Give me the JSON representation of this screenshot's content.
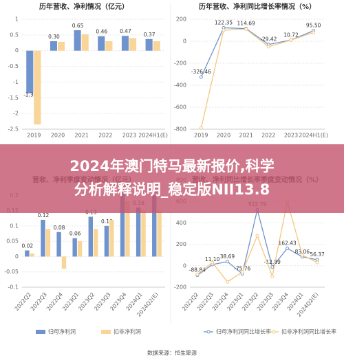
{
  "chart_data": [
    {
      "type": "bar",
      "title": "历年营收、净利情况（亿元）",
      "categories": [
        "2019",
        "2020",
        "2021",
        "2022",
        "2023",
        "2024H1(E)"
      ],
      "series": [
        {
          "color": "#6f93cc",
          "values": [
            -1.36,
            0.3,
            0.65,
            0.46,
            0.47,
            0.37
          ],
          "value_labels": [
            "-1.36",
            "0.30",
            "0.65",
            "0.46",
            "0.47",
            "0.37"
          ]
        },
        {
          "color": "#f9d598",
          "values": [
            -2.35,
            0.28,
            0.52,
            0.3,
            0.4,
            0.3
          ]
        }
      ],
      "ylim": [
        -2.5,
        1
      ],
      "yticks": [
        -2.5,
        -2,
        -1.5,
        -1,
        -0.5,
        0,
        0.5,
        1
      ],
      "grid": true
    },
    {
      "type": "line",
      "title": "历年营收、净利同比增长率情况（%）",
      "categories": [
        "2019",
        "2020",
        "2021",
        "2022",
        "2023",
        "2024H1(E)"
      ],
      "series": [
        {
          "color": "#6f93cc",
          "values": [
            -326.46,
            122.35,
            114.69,
            -29.42,
            10.72,
            95.5
          ],
          "value_labels": [
            "-326.46",
            "122.35",
            "114.69",
            "-29.42",
            "10.72",
            "95.50"
          ]
        },
        {
          "color": "#f5c77e",
          "values": [
            -790,
            100,
            110,
            -50,
            10,
            80
          ]
        }
      ],
      "ylim": [
        -800,
        200
      ],
      "yticks": [
        -800,
        -600,
        -400,
        -200,
        0,
        200
      ],
      "grid": true
    },
    {
      "type": "bar",
      "title": "营收、净利季度变动情况（亿元）",
      "categories": [
        "2022Q2",
        "2022Q3",
        "2022Q4",
        "2023Q1",
        "2023Q2",
        "2023Q3",
        "2023Q4",
        "2024Q1",
        "2024Q2(E)"
      ],
      "series": [
        {
          "name": "归母净利润",
          "color": "#6f93cc",
          "values": [
            0.02,
            0.12,
            0.08,
            0.06,
            0.13,
            0.1,
            0.22,
            0.16,
            0.2
          ],
          "value_labels": [
            "0.02",
            "0.12",
            "0.08",
            "0.06",
            "0.13",
            "0.10",
            "0.22",
            "0.16",
            "0.20"
          ]
        },
        {
          "name": "扣非净利润",
          "color": "#f9d598",
          "values": [
            0.01,
            0.09,
            -0.04,
            0.05,
            0.09,
            0.12,
            0.18,
            0.15,
            0.15
          ]
        }
      ],
      "ylim": [
        -0.1,
        0.25
      ],
      "yticks": [
        -0.1,
        -0.05,
        0,
        0.05,
        0.1,
        0.15,
        0.2
      ],
      "grid": true
    },
    {
      "type": "line",
      "title": "营收、净利同比增长率季度变动情况（%）",
      "categories": [
        "2022Q2",
        "2022Q3",
        "2022Q4",
        "2023Q1",
        "2023Q2",
        "2023Q3",
        "2023Q4",
        "2024Q1",
        "2024Q2(E)"
      ],
      "series": [
        {
          "name": "归母净利润同比增长率",
          "color": "#6f93cc",
          "values": [
            -88.84,
            11.1,
            38.69,
            -75.76,
            522.79,
            -12.89,
            162.43,
            83.06,
            56.37
          ],
          "value_labels": [
            "-88.84",
            "11.10",
            "38.69",
            "-75.76",
            "522.79",
            "-12.89",
            "162.43",
            "83.06",
            "56.37"
          ]
        },
        {
          "name": "扣非净利润同比增长率",
          "color": "#f5c77e",
          "values": [
            -80,
            30,
            -150,
            -60,
            280,
            -100,
            600,
            100,
            30
          ]
        }
      ],
      "ylim": [
        -200,
        800
      ],
      "yticks": [
        -200,
        0,
        200,
        400,
        600,
        800
      ],
      "grid": true
    }
  ],
  "banner": {
    "lines": [
      "2024年澳门特马最新报价,科学",
      "分析解释说明_稳定版NII13.8"
    ]
  },
  "footer": "数据来源：恒生聚源"
}
